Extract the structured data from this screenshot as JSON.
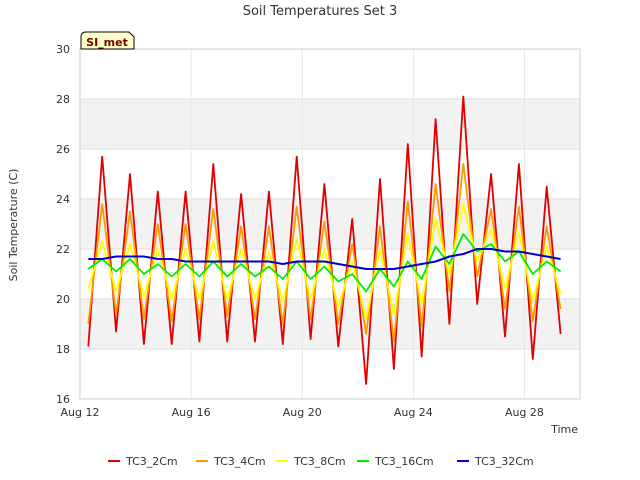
{
  "chart_data": {
    "type": "line",
    "title": "Soil Temperatures Set 3",
    "xlabel": "Time",
    "ylabel": "Soil Temperature (C)",
    "badge": "SI_met",
    "xlim": [
      "Aug 12",
      "Aug 30"
    ],
    "ylim": [
      16,
      30
    ],
    "yticks": [
      16,
      18,
      20,
      22,
      24,
      26,
      28,
      30
    ],
    "xticks": [
      "Aug 12",
      "Aug 16",
      "Aug 20",
      "Aug 24",
      "Aug 28"
    ],
    "grid": true,
    "legend_position": "bottom",
    "x": [
      "Aug 12.3",
      "Aug 12.8",
      "Aug 13.3",
      "Aug 13.8",
      "Aug 14.3",
      "Aug 14.8",
      "Aug 15.3",
      "Aug 15.8",
      "Aug 16.3",
      "Aug 16.8",
      "Aug 17.3",
      "Aug 17.8",
      "Aug 18.3",
      "Aug 18.8",
      "Aug 19.3",
      "Aug 19.8",
      "Aug 20.3",
      "Aug 20.8",
      "Aug 21.3",
      "Aug 21.8",
      "Aug 22.3",
      "Aug 22.8",
      "Aug 23.3",
      "Aug 23.8",
      "Aug 24.3",
      "Aug 24.8",
      "Aug 25.3",
      "Aug 25.8",
      "Aug 26.3",
      "Aug 26.8",
      "Aug 27.3",
      "Aug 27.8",
      "Aug 28.3",
      "Aug 28.8",
      "Aug 29.3"
    ],
    "series": [
      {
        "name": "TC3_2Cm",
        "color": "#e00000",
        "values": [
          18.1,
          25.7,
          18.7,
          25.0,
          18.2,
          24.3,
          18.2,
          24.3,
          18.3,
          25.4,
          18.3,
          24.2,
          18.3,
          24.3,
          18.2,
          25.7,
          18.4,
          24.6,
          18.1,
          23.2,
          16.6,
          24.8,
          17.2,
          26.2,
          17.7,
          27.2,
          19.0,
          28.1,
          19.8,
          25.0,
          18.5,
          25.4,
          17.6,
          24.5,
          18.6
        ]
      },
      {
        "name": "TC3_4Cm",
        "color": "#ff9900",
        "values": [
          19.0,
          23.8,
          19.4,
          23.5,
          19.2,
          23.0,
          19.1,
          23.0,
          19.2,
          23.6,
          19.3,
          22.9,
          19.2,
          22.9,
          19.0,
          23.7,
          19.2,
          23.1,
          19.0,
          22.2,
          18.6,
          22.9,
          18.3,
          23.9,
          18.9,
          24.6,
          20.3,
          25.4,
          20.9,
          23.6,
          19.6,
          23.7,
          19.1,
          22.9,
          19.6
        ]
      },
      {
        "name": "TC3_8Cm",
        "color": "#ffff00",
        "values": [
          20.4,
          22.3,
          20.3,
          22.2,
          20.1,
          22.0,
          20.0,
          22.0,
          20.0,
          22.3,
          20.0,
          22.0,
          20.0,
          21.9,
          19.9,
          22.4,
          20.0,
          22.0,
          19.7,
          21.5,
          19.2,
          22.0,
          19.4,
          22.6,
          19.8,
          23.2,
          21.0,
          23.8,
          21.5,
          22.8,
          20.4,
          22.7,
          19.9,
          22.1,
          20.2
        ]
      },
      {
        "name": "TC3_16Cm",
        "color": "#00ee00",
        "values": [
          21.2,
          21.6,
          21.1,
          21.6,
          21.0,
          21.4,
          20.9,
          21.4,
          20.9,
          21.5,
          20.9,
          21.4,
          20.9,
          21.3,
          20.8,
          21.5,
          20.8,
          21.3,
          20.7,
          21.0,
          20.3,
          21.2,
          20.5,
          21.5,
          20.8,
          22.1,
          21.4,
          22.6,
          21.9,
          22.2,
          21.5,
          21.9,
          21.0,
          21.5,
          21.1
        ]
      },
      {
        "name": "TC3_32Cm",
        "color": "#0000cc",
        "values": [
          21.6,
          21.6,
          21.7,
          21.7,
          21.7,
          21.6,
          21.6,
          21.5,
          21.5,
          21.5,
          21.5,
          21.5,
          21.5,
          21.5,
          21.4,
          21.5,
          21.5,
          21.5,
          21.4,
          21.3,
          21.2,
          21.2,
          21.2,
          21.3,
          21.4,
          21.5,
          21.7,
          21.8,
          22.0,
          22.0,
          21.9,
          21.9,
          21.8,
          21.7,
          21.6
        ]
      }
    ]
  }
}
